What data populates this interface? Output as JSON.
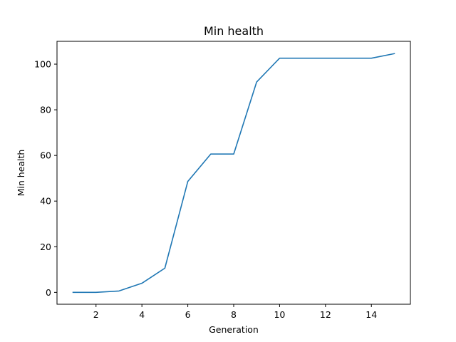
{
  "chart_data": {
    "type": "line",
    "title": "Min health",
    "xlabel": "Generation",
    "ylabel": "Min health",
    "xlim": [
      0.3,
      15.7
    ],
    "ylim": [
      -5.2,
      110
    ],
    "xticks": [
      2,
      4,
      6,
      8,
      10,
      12,
      14
    ],
    "yticks": [
      0,
      20,
      40,
      60,
      80,
      100
    ],
    "grid": false,
    "legend": "none",
    "series": [
      {
        "color": "#1f77b4",
        "x": [
          1,
          2,
          3,
          4,
          5,
          6,
          7,
          8,
          9,
          10,
          11,
          12,
          13,
          14,
          15
        ],
        "y": [
          0,
          0,
          0.6,
          4,
          10.6,
          48.6,
          60.6,
          60.6,
          92.2,
          102.6,
          102.6,
          102.6,
          102.6,
          102.6,
          104.6
        ]
      }
    ]
  }
}
